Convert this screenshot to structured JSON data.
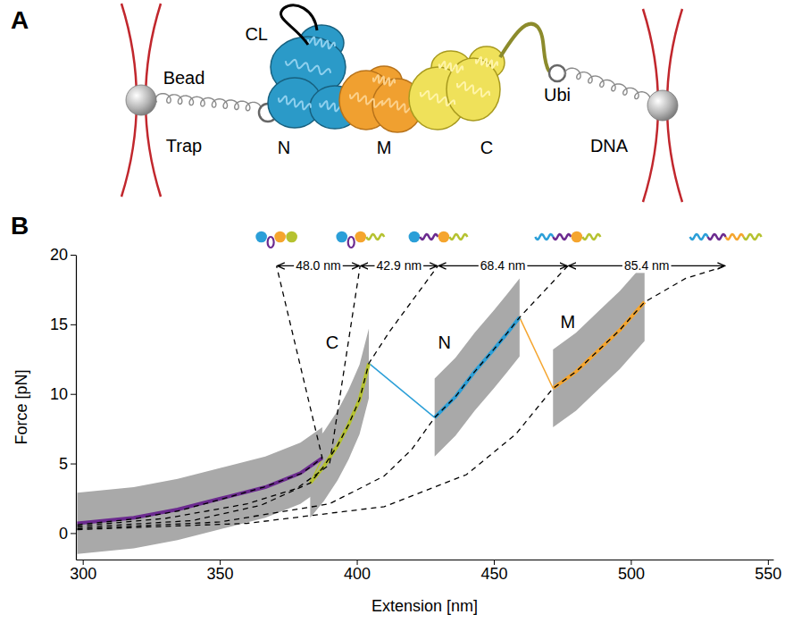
{
  "diagram": {
    "panel_label": "A",
    "labels": {
      "cl": "CL",
      "bead": "Bead",
      "trap": "Trap",
      "n": "N",
      "m": "M",
      "c": "C",
      "ubi": "Ubi",
      "dna": "DNA"
    }
  },
  "chart_data": {
    "type": "line",
    "panel_label": "B",
    "x_label": "Extension [nm]",
    "y_label": "Force [pN]",
    "xlim": [
      297.5,
      552
    ],
    "ylim": [
      -1.9,
      20
    ],
    "xticks": [
      300,
      350,
      400,
      450,
      500,
      550
    ],
    "yticks": [
      0,
      5,
      10,
      15,
      20
    ],
    "series": [
      {
        "color": "#6b2a8f",
        "line_style": "solid",
        "x": [
          298,
          318.6,
          334.6,
          350.6,
          366.6,
          379.4,
          387.4
        ],
        "values": [
          0.7,
          1.1,
          1.7,
          2.5,
          3.3,
          4.3,
          5.4
        ],
        "error": [
          2.2,
          2.2,
          2.2,
          2.2,
          2.2,
          2.2,
          2.2
        ]
      },
      {
        "color": "#b5c230",
        "line_style": "solid",
        "x": [
          383,
          388,
          393,
          397,
          401,
          404.4
        ],
        "values": [
          3.6,
          4.8,
          6.3,
          7.8,
          9.6,
          12.2
        ],
        "error": [
          2.5,
          2.5,
          2.5,
          2.5,
          2.5,
          2.5
        ]
      },
      {
        "color": "#2b9fd8",
        "line_style": "solid",
        "x": [
          428.4,
          436,
          443,
          450,
          455,
          459.4
        ],
        "values": [
          8.3,
          9.8,
          11.6,
          13.2,
          14.4,
          15.5
        ],
        "error": [
          2.8,
          2.8,
          2.8,
          2.8,
          2.8,
          2.8
        ]
      },
      {
        "color": "#f5a52e",
        "line_style": "solid",
        "x": [
          471.6,
          480,
          488,
          496,
          505
        ],
        "values": [
          10.4,
          11.6,
          13.1,
          14.6,
          16.6
        ],
        "error": [
          2.8,
          2.8,
          2.8,
          2.8,
          2.8
        ]
      },
      {
        "color": "#000000",
        "line_style": "dashed",
        "x": [
          298,
          318,
          335,
          350,
          366,
          380,
          387.4,
          370.7
        ],
        "values": [
          0.6,
          1.0,
          1.6,
          2.4,
          3.3,
          4.3,
          5.4,
          19.2
        ]
      },
      {
        "color": "#000000",
        "line_style": "dashed",
        "x": [
          298,
          330,
          360,
          378,
          390,
          401.2
        ],
        "values": [
          0.5,
          1.05,
          2.1,
          3.2,
          4.9,
          19.2
        ]
      },
      {
        "color": "#000000",
        "line_style": "dashed",
        "x": [
          298,
          340,
          365,
          383,
          388,
          393,
          397,
          401,
          404.4,
          412,
          429.6
        ],
        "values": [
          0.4,
          0.9,
          2.0,
          3.6,
          4.8,
          6.3,
          7.8,
          9.6,
          12.2,
          14.5,
          19.2
        ]
      },
      {
        "color": "#000000",
        "line_style": "dashed",
        "x": [
          298,
          350,
          390,
          410,
          420,
          428.4,
          436,
          443,
          450,
          455,
          459.4,
          477
        ],
        "values": [
          0.3,
          0.8,
          2.1,
          4.1,
          6.0,
          8.3,
          9.8,
          11.6,
          13.2,
          14.4,
          15.5,
          19.2
        ]
      },
      {
        "color": "#000000",
        "line_style": "dashed",
        "x": [
          298,
          360,
          410,
          440,
          458,
          471.6,
          480,
          488,
          496,
          505,
          520,
          534.6
        ],
        "values": [
          0.25,
          0.7,
          1.9,
          4.2,
          7.1,
          10.4,
          11.6,
          13.1,
          14.6,
          16.6,
          18.3,
          19.2
        ]
      }
    ],
    "annotations": [
      {
        "text": "48.0 nm",
        "x": [
          370.7,
          401.2
        ],
        "y": 19.2
      },
      {
        "text": "42.9 nm",
        "x": [
          401.2,
          429.6
        ],
        "y": 19.2
      },
      {
        "text": "68.4 nm",
        "x": [
          429.6,
          477
        ],
        "y": 19.2
      },
      {
        "text": "85.4 nm",
        "x": [
          477,
          534.6
        ],
        "y": 19.2
      },
      {
        "text": "C",
        "x": 391,
        "y": 13.7
      },
      {
        "text": "N",
        "x": 432,
        "y": 13.7
      },
      {
        "text": "M",
        "x": 477,
        "y": 15.2
      }
    ]
  }
}
